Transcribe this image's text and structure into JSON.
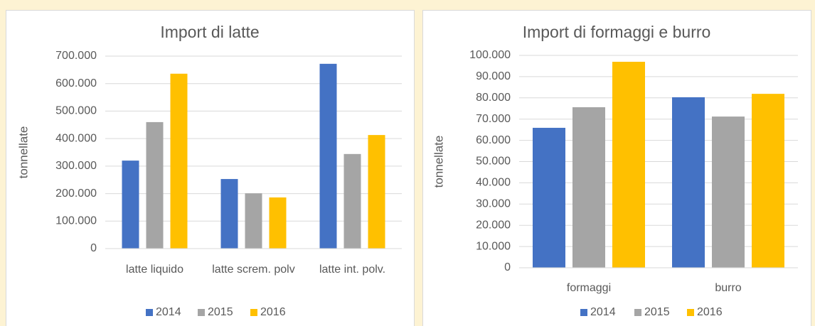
{
  "chart_data": [
    {
      "type": "bar",
      "title": "Import di latte",
      "y_label": "tonnellate",
      "categories": [
        "latte liquido",
        "latte screm. polv",
        "latte int. polv."
      ],
      "series": [
        {
          "name": "2014",
          "color": "#4472c4",
          "values": [
            320000,
            253000,
            672000
          ]
        },
        {
          "name": "2015",
          "color": "#a5a5a5",
          "values": [
            460000,
            201000,
            344000
          ]
        },
        {
          "name": "2016",
          "color": "#ffc000",
          "values": [
            636000,
            186000,
            413000
          ]
        }
      ],
      "ylim": [
        0,
        700000
      ],
      "yticks": [
        0,
        {
          "value": 100000,
          "label": "100.000"
        },
        {
          "value": 200000,
          "label": "200.000"
        },
        {
          "value": 300000,
          "label": "300.000"
        },
        {
          "value": 400000,
          "label": "400.000"
        },
        {
          "value": 500000,
          "label": "500.000"
        },
        {
          "value": 600000,
          "label": "600.000"
        },
        {
          "value": 700000,
          "label": "700.000"
        }
      ],
      "grid": true,
      "legend": "bottom"
    },
    {
      "type": "bar",
      "title": "Import di formaggi e burro",
      "y_label": "tonnellate",
      "categories": [
        "formaggi",
        "burro"
      ],
      "series": [
        {
          "name": "2014",
          "color": "#4472c4",
          "values": [
            65900,
            80300
          ]
        },
        {
          "name": "2015",
          "color": "#a5a5a5",
          "values": [
            75600,
            71200
          ]
        },
        {
          "name": "2016",
          "color": "#ffc000",
          "values": [
            97000,
            81900
          ]
        }
      ],
      "ylim": [
        0,
        100000
      ],
      "yticks": [
        0,
        {
          "value": 10000,
          "label": "10.000"
        },
        {
          "value": 20000,
          "label": "20.000"
        },
        {
          "value": 30000,
          "label": "30.000"
        },
        {
          "value": 40000,
          "label": "40.000"
        },
        {
          "value": 50000,
          "label": "50.000"
        },
        {
          "value": 60000,
          "label": "60.000"
        },
        {
          "value": 70000,
          "label": "70.000"
        },
        {
          "value": 80000,
          "label": "80.000"
        },
        {
          "value": 90000,
          "label": "90.000"
        },
        {
          "value": 100000,
          "label": "100.000"
        }
      ],
      "grid": true,
      "legend": "bottom"
    }
  ]
}
